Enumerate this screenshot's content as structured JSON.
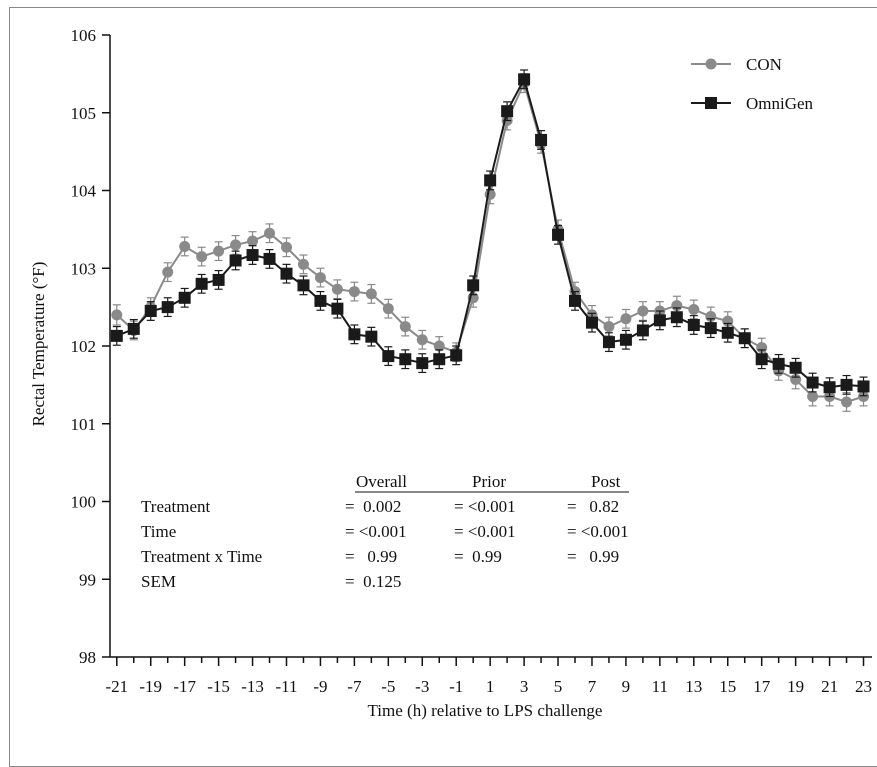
{
  "chart_data": {
    "type": "line",
    "title": "",
    "xlabel": "Time (h) relative to LPS challenge",
    "ylabel": "Rectal Temperature (°F)",
    "xlim": [
      -21.4,
      23.5
    ],
    "ylim": [
      98,
      106
    ],
    "x_tick_labels": [
      "-21",
      "-19",
      "-17",
      "-15",
      "-13",
      "-11",
      "-9",
      "-7",
      "-5",
      "-3",
      "-1",
      "1",
      "3",
      "5",
      "7",
      "9",
      "11",
      "13",
      "15",
      "17",
      "19",
      "21",
      "23"
    ],
    "y_tick_labels": [
      "98",
      "99",
      "100",
      "101",
      "102",
      "103",
      "104",
      "105",
      "106"
    ],
    "legend": {
      "placement": "top-right"
    },
    "series": [
      {
        "name": "CON",
        "color": "#8a8a8a",
        "marker": "circle",
        "x": [
          -21,
          -20,
          -19,
          -18,
          -17,
          -16,
          -15,
          -14,
          -13,
          -12,
          -11,
          -10,
          -9,
          -8,
          -7,
          -6,
          -5,
          -4,
          -3,
          -2,
          -1,
          0,
          1,
          2,
          3,
          4,
          5,
          6,
          7,
          8,
          9,
          10,
          11,
          12,
          13,
          14,
          15,
          16,
          17,
          18,
          19,
          20,
          21,
          22,
          23
        ],
        "values": [
          102.4,
          102.2,
          102.5,
          102.95,
          103.28,
          103.15,
          103.22,
          103.3,
          103.35,
          103.45,
          103.27,
          103.05,
          102.88,
          102.73,
          102.7,
          102.67,
          102.48,
          102.25,
          102.08,
          102.0,
          101.92,
          102.62,
          103.95,
          104.9,
          105.38,
          104.6,
          103.5,
          102.7,
          102.4,
          102.25,
          102.35,
          102.45,
          102.45,
          102.52,
          102.47,
          102.38,
          102.32,
          102.1,
          101.98,
          101.68,
          101.57,
          101.35,
          101.35,
          101.28,
          101.35
        ],
        "errors": [
          0.13,
          0.12,
          0.12,
          0.12,
          0.12,
          0.12,
          0.12,
          0.12,
          0.12,
          0.12,
          0.12,
          0.12,
          0.12,
          0.12,
          0.12,
          0.12,
          0.12,
          0.12,
          0.12,
          0.12,
          0.12,
          0.12,
          0.12,
          0.12,
          0.12,
          0.12,
          0.12,
          0.12,
          0.12,
          0.12,
          0.12,
          0.12,
          0.12,
          0.12,
          0.12,
          0.12,
          0.12,
          0.12,
          0.12,
          0.12,
          0.12,
          0.12,
          0.12,
          0.12,
          0.12
        ]
      },
      {
        "name": "OmniGen",
        "color": "#1a1a1a",
        "marker": "square",
        "x": [
          -21,
          -20,
          -19,
          -18,
          -17,
          -16,
          -15,
          -14,
          -13,
          -12,
          -11,
          -10,
          -9,
          -8,
          -7,
          -6,
          -5,
          -4,
          -3,
          -2,
          -1,
          0,
          1,
          2,
          3,
          4,
          5,
          6,
          7,
          8,
          9,
          10,
          11,
          12,
          13,
          14,
          15,
          16,
          17,
          18,
          19,
          20,
          21,
          22,
          23
        ],
        "values": [
          102.13,
          102.22,
          102.45,
          102.5,
          102.62,
          102.8,
          102.85,
          103.1,
          103.17,
          103.12,
          102.93,
          102.78,
          102.58,
          102.48,
          102.15,
          102.12,
          101.87,
          101.83,
          101.78,
          101.83,
          101.88,
          102.78,
          104.13,
          105.02,
          105.43,
          104.65,
          103.43,
          102.58,
          102.3,
          102.05,
          102.08,
          102.2,
          102.33,
          102.37,
          102.27,
          102.23,
          102.17,
          102.1,
          101.83,
          101.77,
          101.72,
          101.53,
          101.47,
          101.5,
          101.48
        ],
        "errors": [
          0.12,
          0.12,
          0.12,
          0.12,
          0.12,
          0.12,
          0.12,
          0.12,
          0.12,
          0.12,
          0.12,
          0.12,
          0.12,
          0.12,
          0.12,
          0.12,
          0.12,
          0.12,
          0.12,
          0.12,
          0.12,
          0.12,
          0.12,
          0.12,
          0.12,
          0.12,
          0.12,
          0.12,
          0.12,
          0.12,
          0.12,
          0.12,
          0.12,
          0.12,
          0.12,
          0.12,
          0.12,
          0.12,
          0.12,
          0.12,
          0.12,
          0.12,
          0.12,
          0.12,
          0.12
        ]
      }
    ],
    "stats_table": {
      "headers": [
        "Overall",
        "Prior",
        "Post"
      ],
      "rows": [
        {
          "label": "Treatment",
          "cells": [
            "=  0.002",
            "= <0.001",
            "=   0.82"
          ]
        },
        {
          "label": "Time",
          "cells": [
            "= <0.001",
            "= <0.001",
            "= <0.001"
          ]
        },
        {
          "label": "Treatment x Time",
          "cells": [
            "=   0.99",
            "=  0.99",
            "=   0.99"
          ]
        },
        {
          "label": "SEM",
          "cells": [
            "=  0.125",
            "",
            ""
          ]
        }
      ]
    }
  }
}
